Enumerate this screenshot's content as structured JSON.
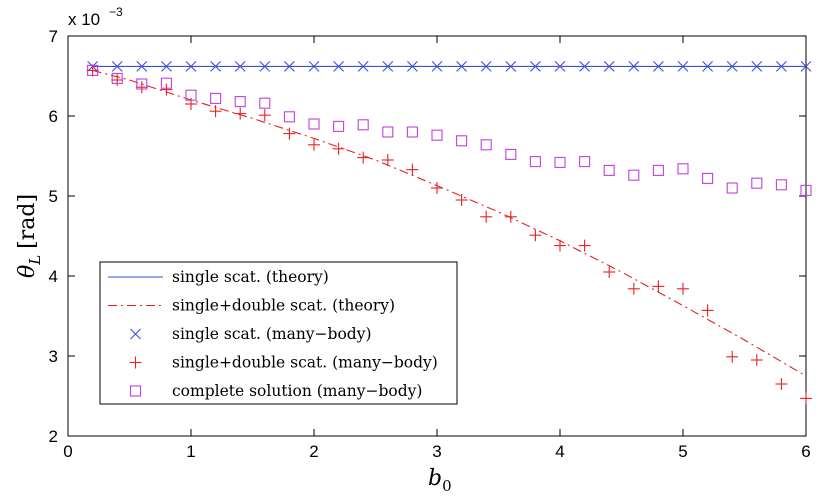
{
  "chart_data": {
    "type": "line",
    "title": "",
    "xlabel": "b0",
    "xlabel_main": "b",
    "xlabel_sub": "0",
    "ylabel": "θL [rad]",
    "ylabel_main": "θ",
    "ylabel_sub": "L",
    "ylabel_unit": "[rad]",
    "exponent_label": "x 10",
    "exponent_power": "−3",
    "xlim": [
      0,
      6
    ],
    "ylim": [
      2,
      7
    ],
    "xticks": [
      0,
      1,
      2,
      3,
      4,
      5,
      6
    ],
    "yticks": [
      2,
      3,
      4,
      5,
      6,
      7
    ],
    "legend_position": "lower-left",
    "series": [
      {
        "name": "single scat. (theory)",
        "style": "solid",
        "color": "#3b4fd8",
        "x": [
          0.2,
          6.0
        ],
        "y": [
          6.62,
          6.62
        ]
      },
      {
        "name": "single+double scat. (theory)",
        "style": "dashdot",
        "color": "#e82020",
        "x": [
          0.2,
          0.5,
          1.0,
          1.5,
          2.0,
          2.5,
          3.0,
          3.5,
          4.0,
          4.5,
          5.0,
          5.5,
          6.0
        ],
        "y": [
          6.57,
          6.45,
          6.2,
          5.97,
          5.72,
          5.45,
          5.13,
          4.8,
          4.44,
          4.05,
          3.63,
          3.2,
          2.75
        ]
      },
      {
        "name": "single scat. (many−body)",
        "marker": "x",
        "color": "#3b4fd8",
        "x": [
          0.2,
          0.4,
          0.6,
          0.8,
          1.0,
          1.2,
          1.4,
          1.6,
          1.8,
          2.0,
          2.2,
          2.4,
          2.6,
          2.8,
          3.0,
          3.2,
          3.4,
          3.6,
          3.8,
          4.0,
          4.2,
          4.4,
          4.6,
          4.8,
          5.0,
          5.2,
          5.4,
          5.6,
          5.8,
          6.0
        ],
        "y": [
          6.62,
          6.62,
          6.62,
          6.62,
          6.62,
          6.62,
          6.62,
          6.62,
          6.62,
          6.62,
          6.62,
          6.62,
          6.62,
          6.62,
          6.62,
          6.62,
          6.62,
          6.62,
          6.62,
          6.62,
          6.62,
          6.62,
          6.62,
          6.62,
          6.62,
          6.62,
          6.62,
          6.62,
          6.62,
          6.62
        ]
      },
      {
        "name": "single+double scat. (many−body)",
        "marker": "+",
        "color": "#e82020",
        "x": [
          0.2,
          0.4,
          0.6,
          0.8,
          1.0,
          1.2,
          1.4,
          1.6,
          1.8,
          2.0,
          2.2,
          2.4,
          2.6,
          2.8,
          3.0,
          3.2,
          3.4,
          3.6,
          3.8,
          4.0,
          4.2,
          4.4,
          4.6,
          4.8,
          5.0,
          5.2,
          5.4,
          5.6,
          5.8,
          6.0
        ],
        "y": [
          6.57,
          6.45,
          6.36,
          6.33,
          6.15,
          6.06,
          6.03,
          6.01,
          5.78,
          5.64,
          5.59,
          5.48,
          5.45,
          5.33,
          5.1,
          4.95,
          4.74,
          4.74,
          4.51,
          4.38,
          4.38,
          4.05,
          3.84,
          3.87,
          3.84,
          3.57,
          2.99,
          2.95,
          2.65,
          2.47
        ]
      },
      {
        "name": "complete solution (many−body)",
        "marker": "square",
        "color": "#c040e0",
        "x": [
          0.2,
          0.4,
          0.6,
          0.8,
          1.0,
          1.2,
          1.4,
          1.6,
          1.8,
          2.0,
          2.2,
          2.4,
          2.6,
          2.8,
          3.0,
          3.2,
          3.4,
          3.6,
          3.8,
          4.0,
          4.2,
          4.4,
          4.6,
          4.8,
          5.0,
          5.2,
          5.4,
          5.6,
          5.8,
          6.0
        ],
        "y": [
          6.57,
          6.47,
          6.4,
          6.41,
          6.26,
          6.22,
          6.18,
          6.16,
          5.99,
          5.9,
          5.87,
          5.89,
          5.8,
          5.8,
          5.76,
          5.69,
          5.64,
          5.52,
          5.43,
          5.42,
          5.43,
          5.32,
          5.26,
          5.32,
          5.34,
          5.22,
          5.1,
          5.16,
          5.14,
          5.07
        ]
      }
    ]
  }
}
